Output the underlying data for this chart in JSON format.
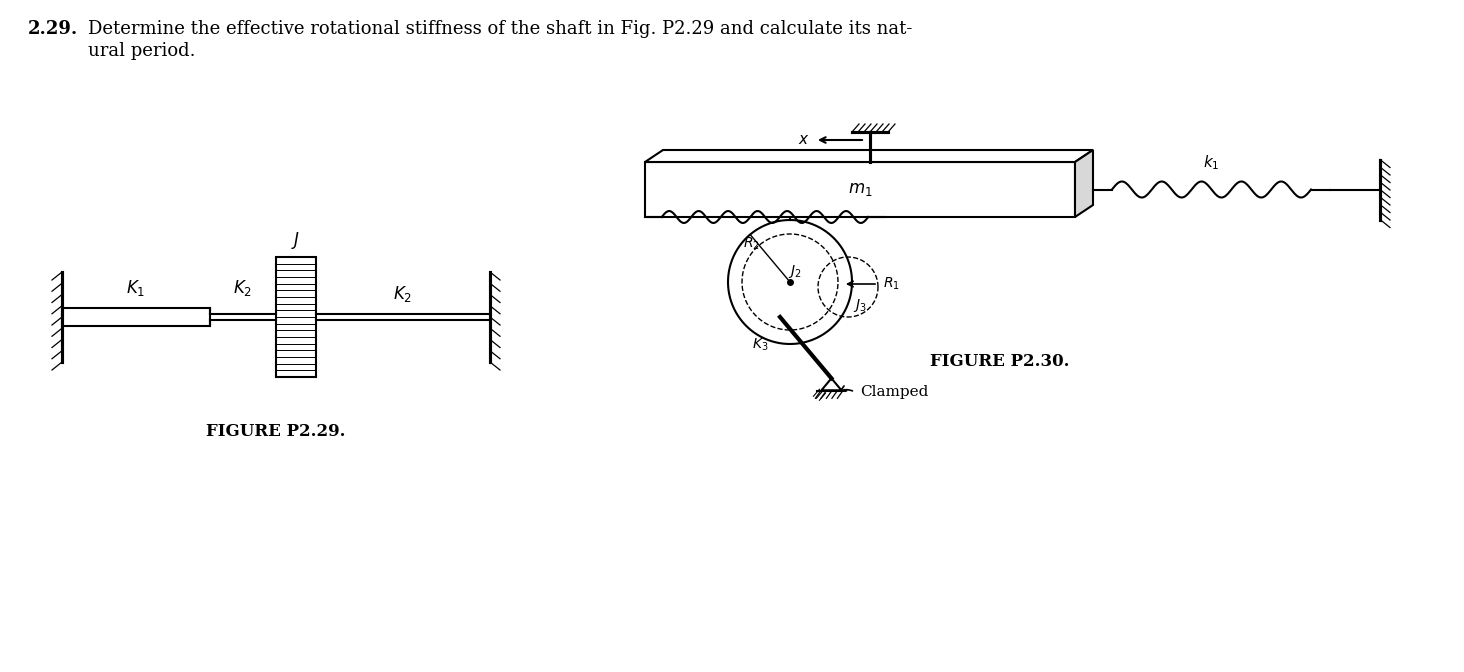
{
  "bg_color": "#ffffff",
  "line_color": "#000000",
  "title_bold": "2.29.",
  "title_rest": "  Determine the effective rotational stiffness of the shaft in Fig. P2.29 and calculate its nat-",
  "title_line2": "        ural period.",
  "fig229_label": "FIGURE P2.29.",
  "fig230_label": "FIGURE P2.30.",
  "label_K1": "$K_1$",
  "label_K2a": "$K_2$",
  "label_K2b": "$K_2$",
  "label_J": "$J$",
  "label_x": "$x$",
  "label_m1": "$m_1$",
  "label_k1": "$k_1$",
  "label_R2": "$R_2$",
  "label_J2": "$J_2$",
  "label_R1": "$R_1$",
  "label_K3": "$K_3$",
  "label_J3": "$J_3$",
  "label_clamped": "Clamped"
}
